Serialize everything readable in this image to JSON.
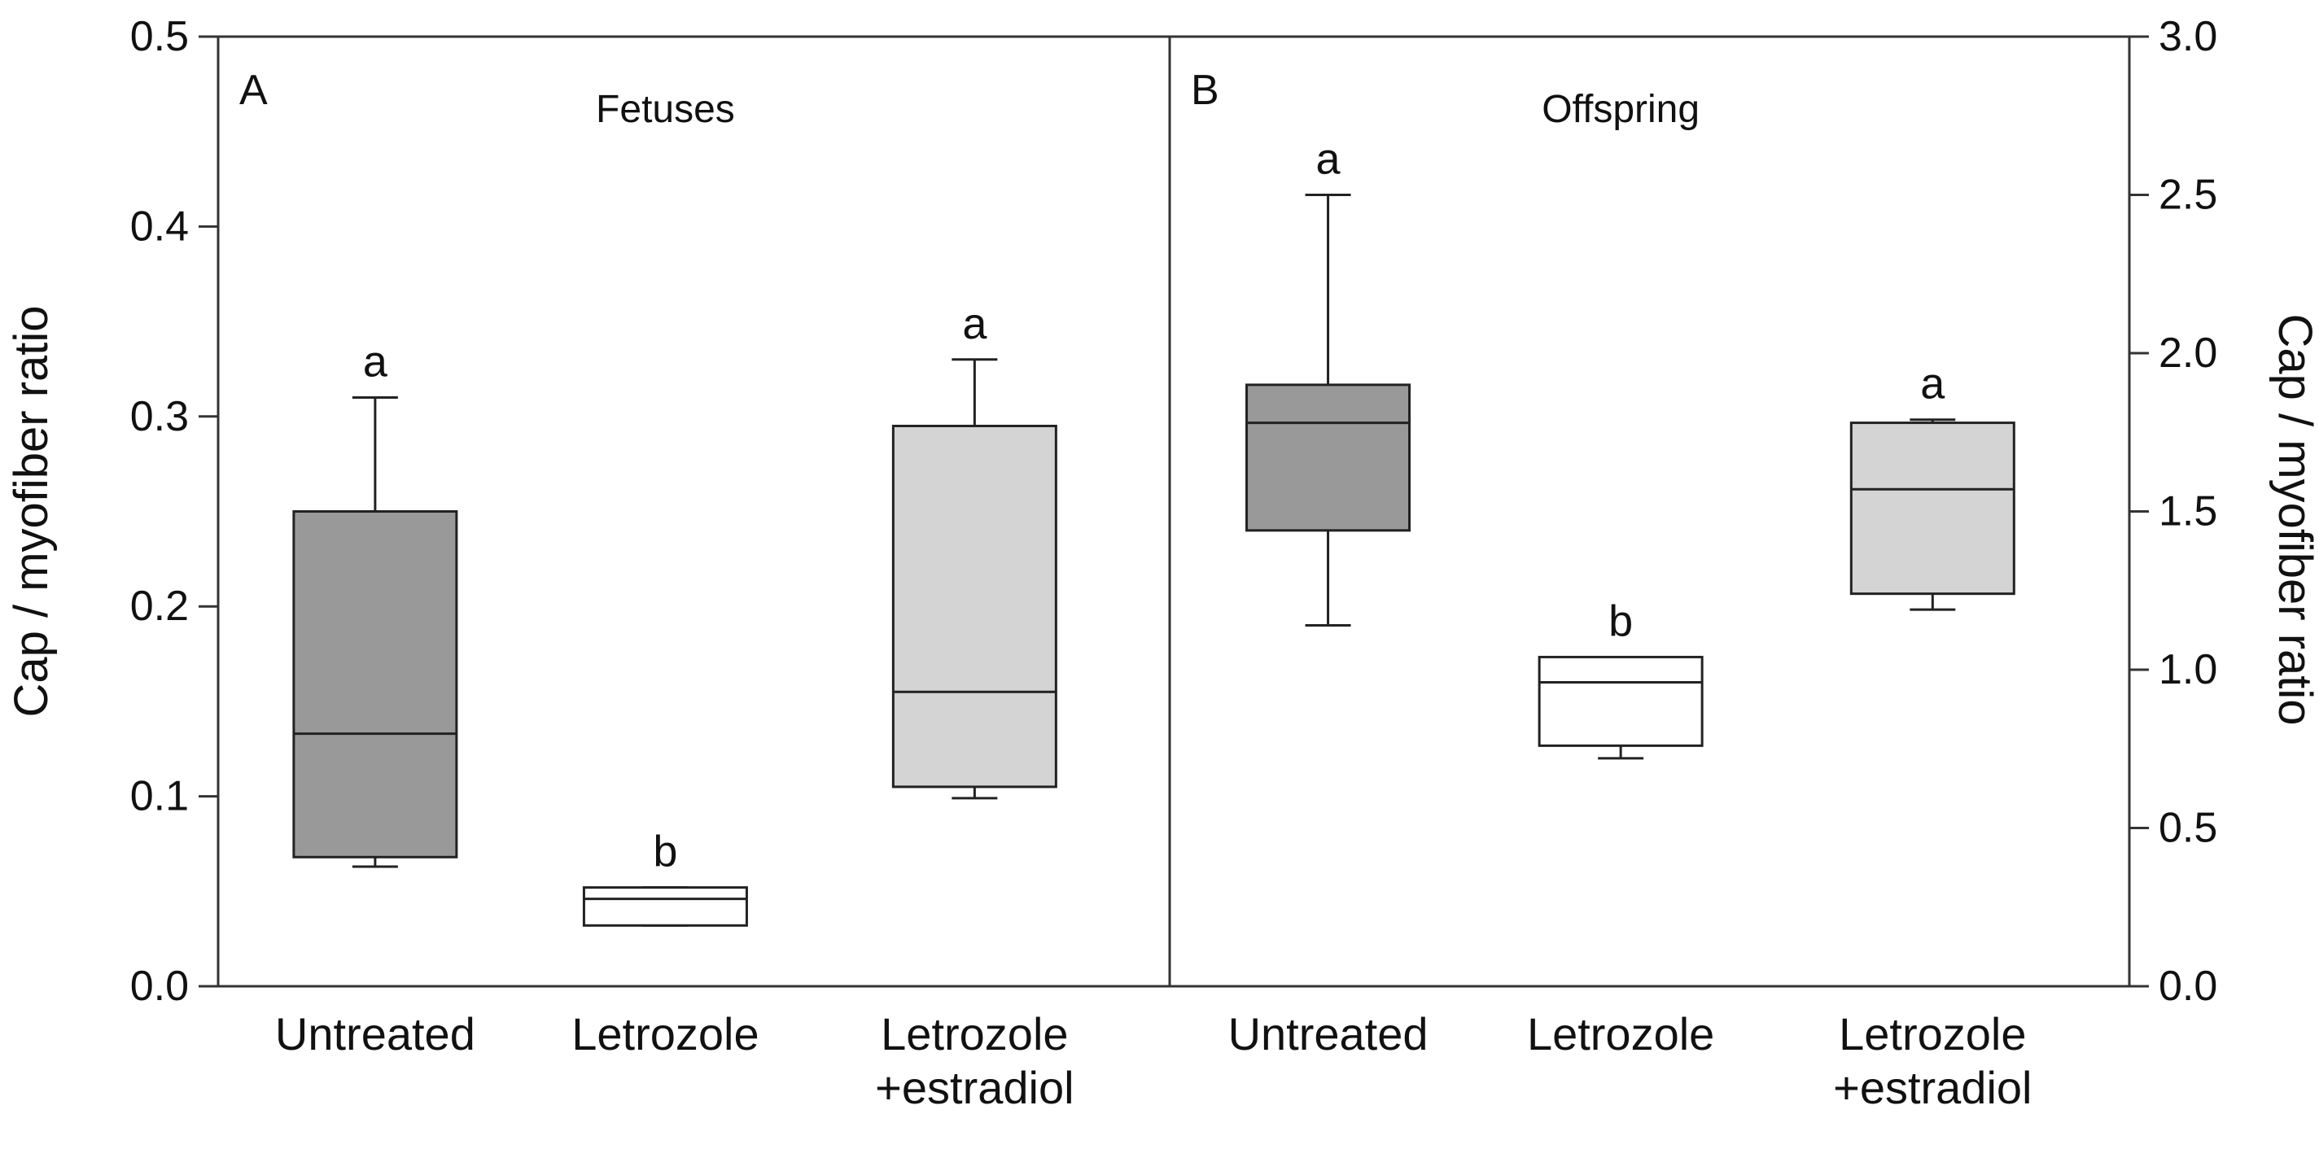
{
  "chart_data": [
    {
      "type": "box",
      "panel_letter": "A",
      "title": "Fetuses",
      "ylabel": "Cap / myofiber ratio",
      "ylim": [
        0,
        0.5
      ],
      "yticks": [
        "0.0",
        "0.1",
        "0.2",
        "0.3",
        "0.4",
        "0.5"
      ],
      "categories": [
        "Untreated",
        "Letrozole",
        "Letrozole\n+estradiol"
      ],
      "boxes": [
        {
          "category": "Untreated",
          "whisker_low": 0.063,
          "q1": 0.068,
          "median": 0.133,
          "q3": 0.25,
          "whisker_high": 0.31,
          "letter": "a",
          "fill": "#999999"
        },
        {
          "category": "Letrozole",
          "whisker_low": 0.032,
          "q1": 0.032,
          "median": 0.046,
          "q3": 0.052,
          "whisker_high": 0.052,
          "letter": "b",
          "fill": "#ffffff"
        },
        {
          "category": "Letrozole\n+estradiol",
          "whisker_low": 0.099,
          "q1": 0.105,
          "median": 0.155,
          "q3": 0.295,
          "whisker_high": 0.33,
          "letter": "a",
          "fill": "#d4d4d4"
        }
      ]
    },
    {
      "type": "box",
      "panel_letter": "B",
      "title": "Offspring",
      "ylabel": "Cap / myofiber ratio",
      "ylim": [
        0,
        3.0
      ],
      "yticks": [
        "0.0",
        "0.5",
        "1.0",
        "1.5",
        "2.0",
        "2.5",
        "3.0"
      ],
      "categories": [
        "Untreated",
        "Letrozole",
        "Letrozole\n+estradiol"
      ],
      "boxes": [
        {
          "category": "Untreated",
          "whisker_low": 1.14,
          "q1": 1.44,
          "median": 1.78,
          "q3": 1.9,
          "whisker_high": 2.5,
          "letter": "a",
          "fill": "#999999"
        },
        {
          "category": "Letrozole",
          "whisker_low": 0.72,
          "q1": 0.76,
          "median": 0.96,
          "q3": 1.04,
          "whisker_high": 1.04,
          "letter": "b",
          "fill": "#ffffff"
        },
        {
          "category": "Letrozole\n+estradiol",
          "whisker_low": 1.19,
          "q1": 1.24,
          "median": 1.57,
          "q3": 1.78,
          "whisker_high": 1.79,
          "letter": "a",
          "fill": "#d4d4d4"
        }
      ]
    }
  ]
}
